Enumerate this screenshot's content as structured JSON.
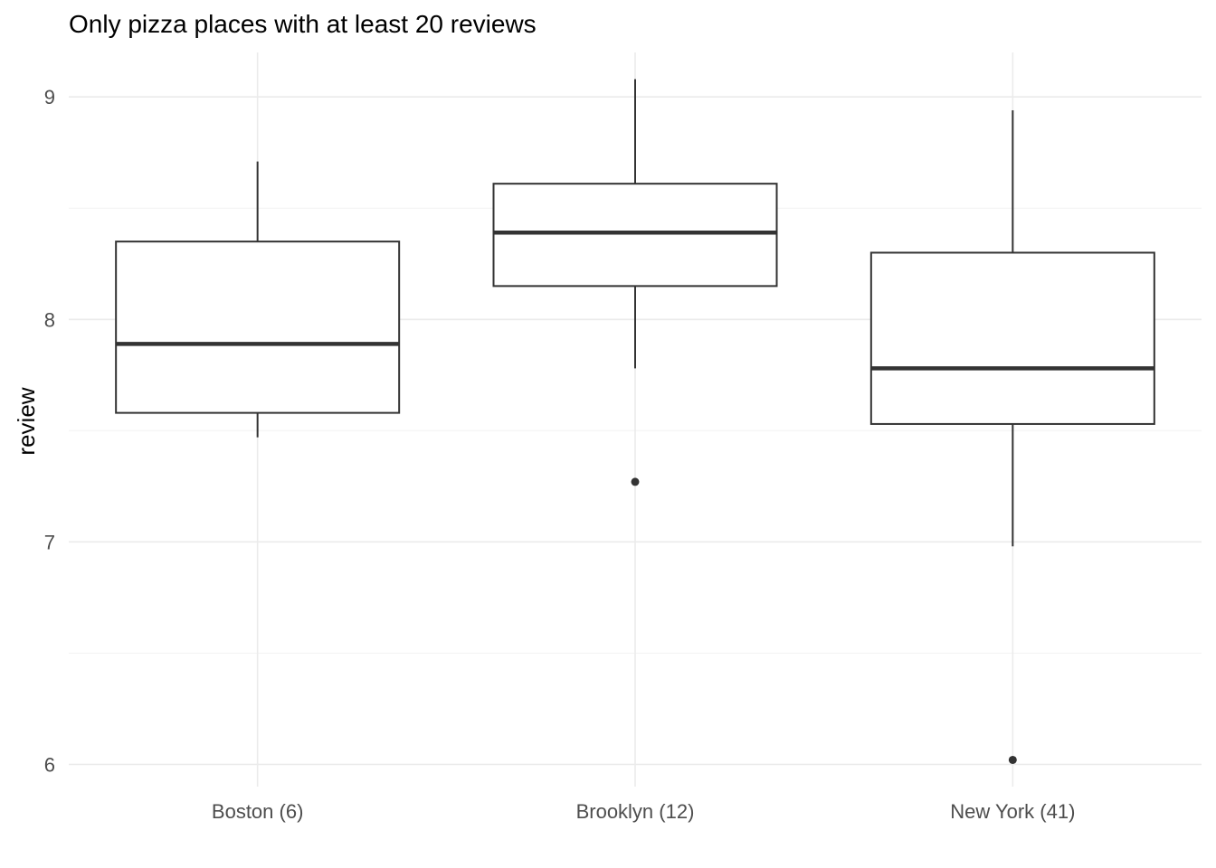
{
  "chart_data": {
    "type": "boxplot",
    "title": "Only pizza places with at least 20 reviews",
    "xlabel": "",
    "ylabel": "review",
    "ylim": [
      5.9,
      9.2
    ],
    "y_ticks": [
      6,
      7,
      8,
      9
    ],
    "grid": true,
    "legend": "none",
    "categories": [
      "Boston (6)",
      "Brooklyn (12)",
      "New York (41)"
    ],
    "boxes": [
      {
        "category": "Boston (6)",
        "min": 7.47,
        "q1": 7.58,
        "median": 7.89,
        "q3": 8.35,
        "max": 8.71,
        "outliers": []
      },
      {
        "category": "Brooklyn (12)",
        "min": 7.78,
        "q1": 8.15,
        "median": 8.39,
        "q3": 8.61,
        "max": 9.08,
        "outliers": [
          7.27
        ]
      },
      {
        "category": "New York (41)",
        "min": 6.98,
        "q1": 7.53,
        "median": 7.78,
        "q3": 8.3,
        "max": 8.94,
        "outliers": [
          6.02
        ]
      }
    ],
    "colors": {
      "box_stroke": "#333333",
      "box_fill": "#ffffff",
      "grid": "#ebebeb",
      "tick_text": "#4d4d4d"
    }
  }
}
